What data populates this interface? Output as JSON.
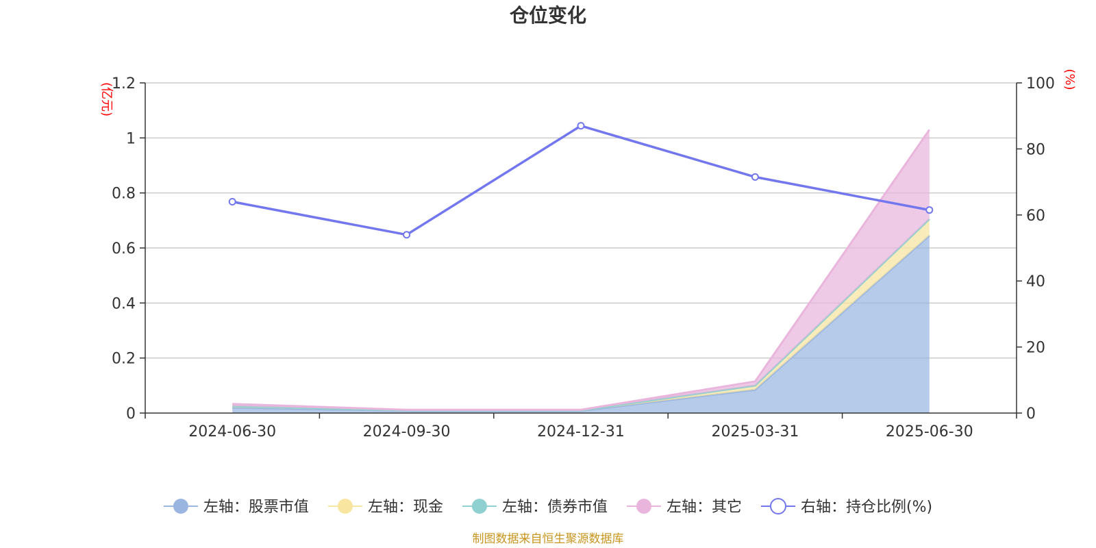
{
  "chart_data": {
    "type": "area",
    "title": "仓位变化",
    "x": [
      "2024-06-30",
      "2024-09-30",
      "2024-12-31",
      "2025-03-31",
      "2025-06-30"
    ],
    "left_axis": {
      "unit": "(亿元)",
      "ylim": [
        0,
        1.2
      ],
      "ticks": [
        "0",
        "0.2",
        "0.4",
        "0.6",
        "0.8",
        "1",
        "1.2"
      ]
    },
    "right_axis": {
      "unit": "(%)",
      "ylim": [
        0,
        100
      ],
      "ticks": [
        "0",
        "20",
        "40",
        "60",
        "80",
        "100"
      ]
    },
    "grid": true,
    "legend_position": "bottom",
    "series": [
      {
        "name": "左轴：股票市值",
        "axis": "left",
        "stacked": true,
        "color": "#9ab6e0",
        "values": [
          0.02,
          0.008,
          0.008,
          0.085,
          0.645
        ]
      },
      {
        "name": "左轴：现金",
        "axis": "left",
        "stacked": true,
        "color": "#f7e5a0",
        "values": [
          0.005,
          0.002,
          0.002,
          0.015,
          0.06
        ]
      },
      {
        "name": "左轴：债券市值",
        "axis": "left",
        "stacked": true,
        "color": "#8fd0d0",
        "values": [
          0,
          0,
          0,
          0,
          0
        ]
      },
      {
        "name": "左轴：其它",
        "axis": "left",
        "stacked": true,
        "color": "#e9b5dc",
        "values": [
          0.008,
          0.002,
          0.002,
          0.015,
          0.325
        ]
      },
      {
        "name": "右轴：持仓比例(%)",
        "axis": "right",
        "stacked": false,
        "color": "#7377ee",
        "values": [
          64,
          54,
          87,
          71.5,
          61.5
        ]
      }
    ]
  },
  "footer": {
    "source": "制图数据来自恒生聚源数据库"
  }
}
